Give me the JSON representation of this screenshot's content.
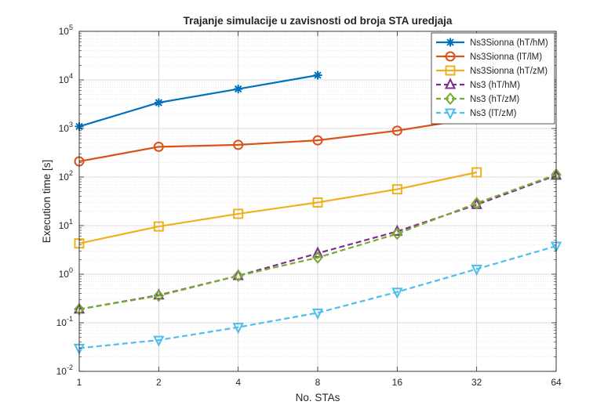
{
  "chart_data": {
    "type": "line",
    "title": "Trajanje simulacije u zavisnosti od broja STA uredjaja",
    "xlabel": "No. STAs",
    "ylabel": "Execution time [s]",
    "x_scale": "log2",
    "y_scale": "log10",
    "x_ticks": [
      "1",
      "2",
      "4",
      "8",
      "16",
      "32",
      "64"
    ],
    "x": [
      1,
      2,
      4,
      8,
      16,
      32,
      64
    ],
    "ylim": [
      0.01,
      100000
    ],
    "y_ticks": [
      {
        "base": "10",
        "exp": "-2"
      },
      {
        "base": "10",
        "exp": "-1"
      },
      {
        "base": "10",
        "exp": "0"
      },
      {
        "base": "10",
        "exp": "1"
      },
      {
        "base": "10",
        "exp": "2"
      },
      {
        "base": "10",
        "exp": "3"
      },
      {
        "base": "10",
        "exp": "4"
      },
      {
        "base": "10",
        "exp": "5"
      }
    ],
    "grid": true,
    "legend_position": "top-right",
    "series": [
      {
        "name": "Ns3Sionna (hT/hM)",
        "color": "#0072BD",
        "marker": "asterisk",
        "dash": "solid",
        "x": [
          1,
          2,
          4,
          8
        ],
        "values": [
          1100,
          3400,
          6500,
          12500
        ]
      },
      {
        "name": "Ns3Sionna (lT/lM)",
        "color": "#D95319",
        "marker": "circle",
        "dash": "solid",
        "x": [
          1,
          2,
          4,
          8,
          16,
          32
        ],
        "values": [
          210,
          420,
          460,
          570,
          900,
          1650
        ]
      },
      {
        "name": "Ns3Sionna (hT/zM)",
        "color": "#EDB120",
        "marker": "square",
        "dash": "solid",
        "x": [
          1,
          2,
          4,
          8,
          16,
          32
        ],
        "values": [
          4.3,
          9.6,
          17.5,
          30,
          56,
          125
        ]
      },
      {
        "name": "Ns3 (hT/hM)",
        "color": "#7E2F8E",
        "marker": "triangle-up",
        "dash": "dashed",
        "x": [
          1,
          2,
          4,
          8,
          16,
          32,
          64
        ],
        "values": [
          0.19,
          0.37,
          0.93,
          2.7,
          7.6,
          27,
          108
        ]
      },
      {
        "name": "Ns3 (hT/zM)",
        "color": "#77AC30",
        "marker": "diamond",
        "dash": "dashed",
        "x": [
          1,
          2,
          4,
          8,
          16,
          32,
          64
        ],
        "values": [
          0.19,
          0.36,
          0.93,
          2.2,
          6.8,
          29,
          112
        ]
      },
      {
        "name": "Ns3 (lT/zM)",
        "color": "#4DBEEE",
        "marker": "triangle-down",
        "dash": "dashed",
        "x": [
          1,
          2,
          4,
          8,
          16,
          32,
          64
        ],
        "values": [
          0.03,
          0.044,
          0.081,
          0.16,
          0.43,
          1.28,
          3.8
        ]
      }
    ]
  }
}
